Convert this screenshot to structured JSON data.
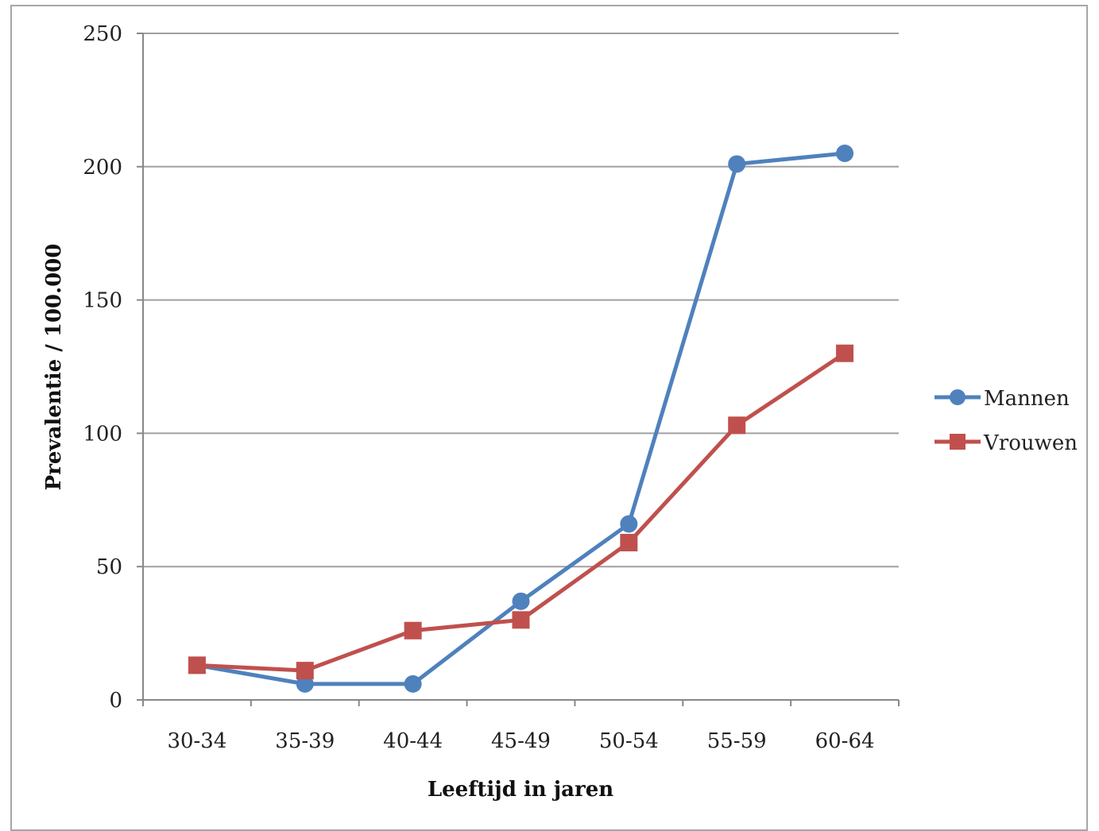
{
  "chart_data": {
    "type": "line",
    "title": "",
    "xlabel": "Leeftijd in jaren",
    "ylabel": "Prevalentie / 100.000",
    "categories": [
      "30-34",
      "35-39",
      "40-44",
      "45-49",
      "50-54",
      "55-59",
      "60-64"
    ],
    "ylim": [
      0,
      250
    ],
    "yticks": [
      0,
      50,
      100,
      150,
      200,
      250
    ],
    "grid": true,
    "legend_position": "right",
    "series": [
      {
        "name": "Mannen",
        "color": "#4f81bd",
        "marker": "circle",
        "values": [
          13,
          6,
          6,
          37,
          66,
          201,
          205
        ]
      },
      {
        "name": "Vrouwen",
        "color": "#c0504d",
        "marker": "square",
        "values": [
          13,
          11,
          26,
          30,
          59,
          103,
          130
        ]
      }
    ]
  }
}
